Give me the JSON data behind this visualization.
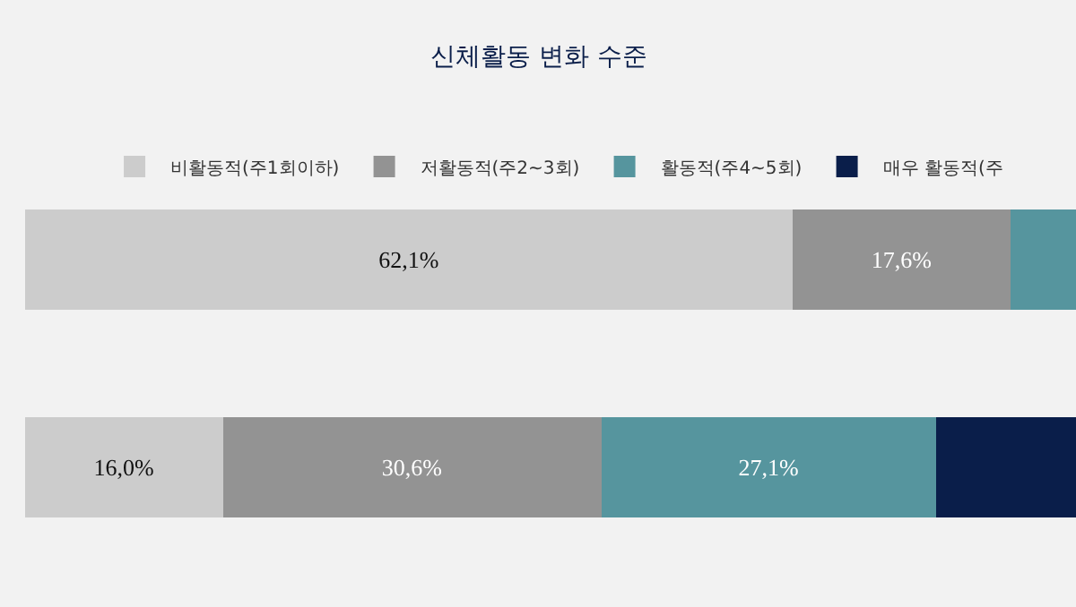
{
  "chart_data": {
    "type": "bar",
    "title": "신체활동 변화 수준",
    "orientation": "horizontal",
    "stacked": true,
    "categories": [
      null,
      null
    ],
    "xlim": [
      0,
      85
    ],
    "legend": "top",
    "series": [
      {
        "name": "비활동적(주1회이하)",
        "color": "#cccccc",
        "values": [
          62.1,
          16.0
        ],
        "value_labels": [
          "62,1%",
          "16,0%"
        ]
      },
      {
        "name": "저활동적(주2~3회)",
        "color": "#939393",
        "values": [
          17.6,
          30.6
        ],
        "value_labels": [
          "17,6%",
          "30,6%"
        ]
      },
      {
        "name": "활동적(주4~5회)",
        "color": "#56959e",
        "values": [
          5.3,
          27.1
        ],
        "value_labels": [
          null,
          "27,1%"
        ]
      },
      {
        "name": "매우 활동적(주",
        "color": "#0a1e4a",
        "values": [
          null,
          11.3
        ],
        "value_labels": [
          null,
          null
        ]
      }
    ]
  }
}
